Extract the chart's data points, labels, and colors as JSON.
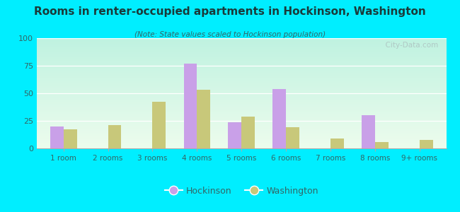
{
  "title": "Rooms in renter-occupied apartments in Hockinson, Washington",
  "subtitle": "(Note: State values scaled to Hockinson population)",
  "categories": [
    "1 room",
    "2 rooms",
    "3 rooms",
    "4 rooms",
    "5 rooms",
    "6 rooms",
    "7 rooms",
    "8 rooms",
    "9+ rooms"
  ],
  "hockinson": [
    20,
    0,
    0,
    77,
    24,
    54,
    0,
    30,
    0
  ],
  "washington": [
    17,
    21,
    42,
    53,
    29,
    19,
    9,
    6,
    8
  ],
  "hockinson_color": "#c9a0e8",
  "washington_color": "#c8c87a",
  "ylim": [
    0,
    100
  ],
  "yticks": [
    0,
    25,
    50,
    75,
    100
  ],
  "background_outer": "#00eeff",
  "bg_top": "#cceedd",
  "bg_bottom": "#eef8ee",
  "title_color": "#1a3a3a",
  "subtitle_color": "#336666",
  "tick_color": "#336666",
  "watermark": "  City-Data.com",
  "legend_hockinson": "Hockinson",
  "legend_washington": "Washington",
  "bar_width": 0.3
}
